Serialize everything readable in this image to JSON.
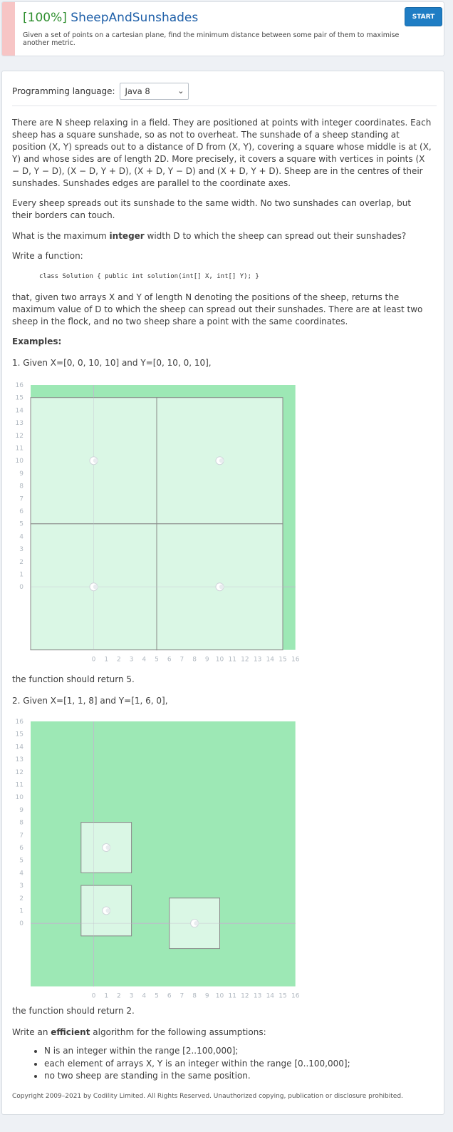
{
  "header": {
    "score": "[100%]",
    "title": "SheepAndSunshades",
    "description": "Given a set of points on a cartesian plane, find the minimum distance between some pair of them to maximise another metric.",
    "start_label": "START"
  },
  "lang": {
    "label": "Programming language:",
    "value": "Java 8"
  },
  "problem": {
    "p1": "There are N sheep relaxing in a field. They are positioned at points with integer coordinates. Each sheep has a square sunshade, so as not to overheat. The sunshade of a sheep standing at position (X, Y) spreads out to a distance of D from (X, Y), covering a square whose middle is at (X, Y) and whose sides are of length 2D. More precisely, it covers a square with vertices in points (X − D, Y − D), (X − D, Y + D), (X + D, Y − D) and (X + D, Y + D). Sheep are in the centres of their sunshades. Sunshades edges are parallel to the coordinate axes.",
    "p2": "Every sheep spreads out its sunshade to the same width. No two sunshades can overlap, but their borders can touch.",
    "p3_pre": "What is the maximum ",
    "p3_bold": "integer",
    "p3_post": " width D to which the sheep can spread out their sunshades?",
    "p4": "Write a function:",
    "code": "class Solution { public int solution(int[] X, int[] Y); }",
    "p5": "that, given two arrays X and Y of length N denoting the positions of the sheep, returns the maximum value of D to which the sheep can spread out their sunshades. There are at least two sheep in the flock, and no two sheep share a point with the same coordinates.",
    "examples_heading": "Examples:",
    "ex1": "1. Given X=[0, 0, 10, 10] and Y=[0, 10, 0, 10],",
    "ex1_result": "the function should return 5.",
    "ex2": "2. Given X=[1, 1, 8] and Y=[1, 6, 0],",
    "ex2_result": "the function should return 2.",
    "eff_pre": "Write an ",
    "eff_bold": "efficient",
    "eff_post": " algorithm for the following assumptions:",
    "assumptions": [
      "N is an integer within the range [2..100,000];",
      "each element of arrays X, Y is an integer within the range [0..100,000];",
      "no two sheep are standing in the same position."
    ]
  },
  "footer": "Copyright 2009–2021 by Codility Limited. All Rights Reserved. Unauthorized copying, publication or disclosure prohibited.",
  "colors": {
    "field": "#9de8b5",
    "shade": "#e0f7e9",
    "shade_border": "#888888",
    "axis": "#b9c1c8",
    "tick": "#b0b8c0"
  },
  "chart_data": [
    {
      "type": "scatter",
      "x_ticks": [
        "0",
        "1",
        "2",
        "3",
        "4",
        "5",
        "6",
        "7",
        "8",
        "9",
        "10",
        "11",
        "12",
        "13",
        "14",
        "15",
        "16"
      ],
      "y_ticks": [
        "16",
        "15",
        "14",
        "13",
        "12",
        "11",
        "10",
        "9",
        "8",
        "7",
        "6",
        "5",
        "4",
        "3",
        "2",
        "1",
        "0"
      ],
      "xlim": [
        -5,
        16
      ],
      "ylim": [
        -5,
        16
      ],
      "sheep": [
        {
          "x": 0,
          "y": 0
        },
        {
          "x": 0,
          "y": 10
        },
        {
          "x": 10,
          "y": 0
        },
        {
          "x": 10,
          "y": 10
        }
      ],
      "D": 5
    },
    {
      "type": "scatter",
      "x_ticks": [
        "0",
        "1",
        "2",
        "3",
        "4",
        "5",
        "6",
        "7",
        "8",
        "9",
        "10",
        "11",
        "12",
        "13",
        "14",
        "15",
        "16"
      ],
      "y_ticks": [
        "16",
        "15",
        "14",
        "13",
        "12",
        "11",
        "10",
        "9",
        "8",
        "7",
        "6",
        "5",
        "4",
        "3",
        "2",
        "1",
        "0"
      ],
      "xlim": [
        -5,
        16
      ],
      "ylim": [
        -5,
        16
      ],
      "sheep": [
        {
          "x": 1,
          "y": 1
        },
        {
          "x": 1,
          "y": 6
        },
        {
          "x": 8,
          "y": 0
        }
      ],
      "D": 2
    }
  ]
}
